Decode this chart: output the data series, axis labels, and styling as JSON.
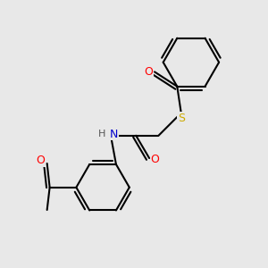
{
  "bg_color": "#e8e8e8",
  "bond_color": "#000000",
  "bond_width": 1.5,
  "double_sep": 0.1,
  "atom_colors": {
    "O": "#ff0000",
    "N": "#0000cc",
    "S": "#ccaa00",
    "H": "#555555"
  },
  "figsize": [
    3.0,
    3.0
  ],
  "dpi": 100,
  "xlim": [
    0,
    10
  ],
  "ylim": [
    0,
    10
  ]
}
